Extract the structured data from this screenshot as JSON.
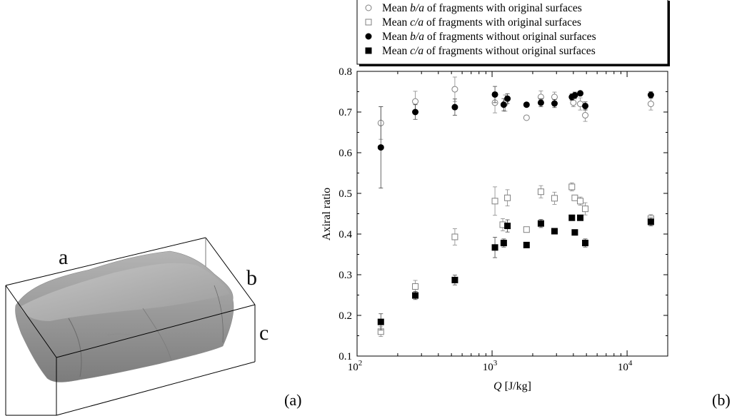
{
  "panel_a": {
    "label": "(a)",
    "axis_letters": [
      "a",
      "b",
      "c"
    ]
  },
  "panel_b": {
    "label": "(b)"
  },
  "chart_data": {
    "type": "scatter",
    "title": "",
    "xlabel_var": "Q",
    "xlabel_unit": " [J/kg]",
    "ylabel": "Axiral ratio",
    "xscale": "log",
    "xlim": [
      100,
      20000
    ],
    "ylim": [
      0.1,
      0.8
    ],
    "yticks": [
      0.1,
      0.2,
      0.3,
      0.4,
      0.5,
      0.6,
      0.7,
      0.8
    ],
    "xticks": [
      {
        "value": 100,
        "base": "10",
        "exp": "2"
      },
      {
        "value": 1000,
        "base": "10",
        "exp": "3"
      },
      {
        "value": 10000,
        "base": "10",
        "exp": "4"
      }
    ],
    "legend_position": "top",
    "series": [
      {
        "name": "Mean b/a of fragments with original surfaces",
        "name_parts": [
          "Mean ",
          "b/a",
          " of fragments with original surfaces"
        ],
        "marker": "open-circle",
        "color": "#808080",
        "points": [
          {
            "x": 150,
            "y": 0.673,
            "err": 0.04
          },
          {
            "x": 270,
            "y": 0.726,
            "err": 0.025
          },
          {
            "x": 530,
            "y": 0.756,
            "err": 0.03
          },
          {
            "x": 1050,
            "y": 0.723,
            "err": 0.025
          },
          {
            "x": 1250,
            "y": 0.722,
            "err": 0.02
          },
          {
            "x": 1800,
            "y": 0.686,
            "err": 0
          },
          {
            "x": 2300,
            "y": 0.737,
            "err": 0.015
          },
          {
            "x": 2900,
            "y": 0.737,
            "err": 0.012
          },
          {
            "x": 4000,
            "y": 0.723,
            "err": 0.01
          },
          {
            "x": 4500,
            "y": 0.72,
            "err": 0.015
          },
          {
            "x": 4900,
            "y": 0.692,
            "err": 0.015
          },
          {
            "x": 15000,
            "y": 0.72,
            "err": 0.015
          }
        ]
      },
      {
        "name": "Mean c/a of fragments with original surfaces",
        "name_parts": [
          "Mean ",
          "c/a",
          " of fragments with original surfaces"
        ],
        "marker": "open-square",
        "color": "#808080",
        "points": [
          {
            "x": 150,
            "y": 0.16,
            "err": 0.012
          },
          {
            "x": 270,
            "y": 0.271,
            "err": 0.015
          },
          {
            "x": 530,
            "y": 0.393,
            "err": 0.02
          },
          {
            "x": 1050,
            "y": 0.481,
            "err": 0.035
          },
          {
            "x": 1200,
            "y": 0.423,
            "err": 0.015
          },
          {
            "x": 1300,
            "y": 0.489,
            "err": 0.02
          },
          {
            "x": 1800,
            "y": 0.411,
            "err": 0
          },
          {
            "x": 2300,
            "y": 0.504,
            "err": 0.015
          },
          {
            "x": 2900,
            "y": 0.488,
            "err": 0.015
          },
          {
            "x": 3900,
            "y": 0.516,
            "err": 0.01
          },
          {
            "x": 4100,
            "y": 0.489,
            "err": 0
          },
          {
            "x": 4500,
            "y": 0.481,
            "err": 0.01
          },
          {
            "x": 4900,
            "y": 0.462,
            "err": 0.015
          },
          {
            "x": 15000,
            "y": 0.438,
            "err": 0.01
          }
        ]
      },
      {
        "name": "Mean b/a of fragments without original surfaces",
        "name_parts": [
          "Mean ",
          "b/a",
          " of fragments without original surfaces"
        ],
        "marker": "filled-circle",
        "color": "#000000",
        "points": [
          {
            "x": 150,
            "y": 0.613,
            "err": 0.1
          },
          {
            "x": 270,
            "y": 0.7,
            "err": 0.018
          },
          {
            "x": 530,
            "y": 0.712,
            "err": 0.02
          },
          {
            "x": 1050,
            "y": 0.743,
            "err": 0.02
          },
          {
            "x": 1220,
            "y": 0.718,
            "err": 0.015
          },
          {
            "x": 1300,
            "y": 0.733,
            "err": 0.012
          },
          {
            "x": 1800,
            "y": 0.718,
            "err": 0
          },
          {
            "x": 2300,
            "y": 0.723,
            "err": 0.01
          },
          {
            "x": 2900,
            "y": 0.721,
            "err": 0.01
          },
          {
            "x": 3900,
            "y": 0.737,
            "err": 0.008
          },
          {
            "x": 4100,
            "y": 0.741,
            "err": 0.008
          },
          {
            "x": 4500,
            "y": 0.746,
            "err": 0.005
          },
          {
            "x": 4900,
            "y": 0.715,
            "err": 0.01
          },
          {
            "x": 15000,
            "y": 0.742,
            "err": 0.008
          }
        ]
      },
      {
        "name": "Mean c/a of fragments without original surfaces",
        "name_parts": [
          "Mean ",
          "c/a",
          " of fragments without original surfaces"
        ],
        "marker": "filled-square",
        "color": "#000000",
        "points": [
          {
            "x": 150,
            "y": 0.184,
            "err": 0.02
          },
          {
            "x": 270,
            "y": 0.249,
            "err": 0.01
          },
          {
            "x": 530,
            "y": 0.287,
            "err": 0.012
          },
          {
            "x": 1050,
            "y": 0.367,
            "err": 0.025
          },
          {
            "x": 1220,
            "y": 0.378,
            "err": 0.01
          },
          {
            "x": 1300,
            "y": 0.42,
            "err": 0.015
          },
          {
            "x": 1800,
            "y": 0.373,
            "err": 0
          },
          {
            "x": 2300,
            "y": 0.426,
            "err": 0.01
          },
          {
            "x": 2900,
            "y": 0.407,
            "err": 0.005
          },
          {
            "x": 3900,
            "y": 0.44,
            "err": 0
          },
          {
            "x": 4100,
            "y": 0.404,
            "err": 0
          },
          {
            "x": 4500,
            "y": 0.44,
            "err": 0.005
          },
          {
            "x": 4900,
            "y": 0.378,
            "err": 0.01
          },
          {
            "x": 15000,
            "y": 0.43,
            "err": 0.01
          }
        ]
      }
    ]
  }
}
